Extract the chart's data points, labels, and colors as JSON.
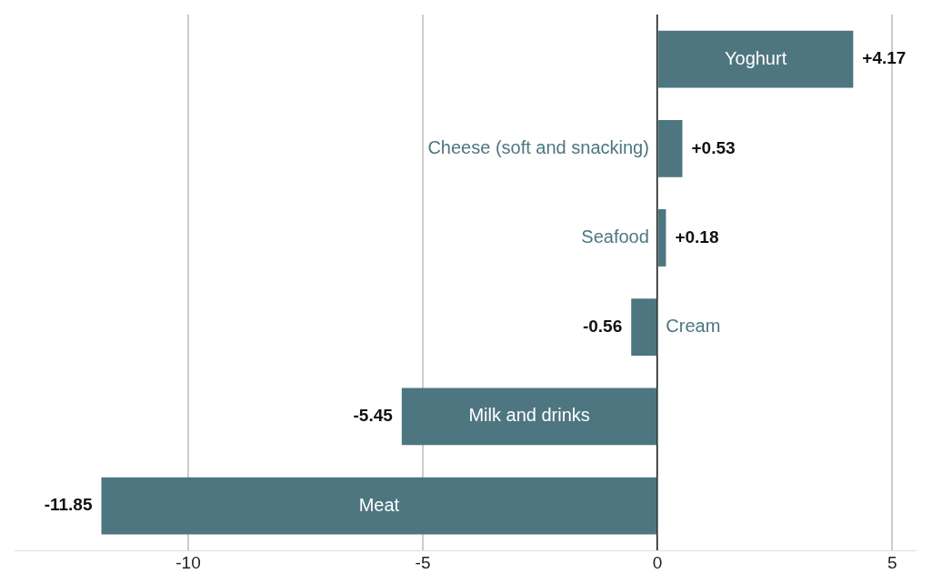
{
  "chart_data": {
    "type": "bar",
    "orientation": "horizontal",
    "categories": [
      "Yoghurt",
      "Cheese (soft and snacking)",
      "Seafood",
      "Cream",
      "Milk and drinks",
      "Meat"
    ],
    "values": [
      4.17,
      0.53,
      0.18,
      -0.56,
      -5.45,
      -11.85
    ],
    "value_labels": [
      "+4.17",
      "+0.53",
      "+0.18",
      "-0.56",
      "-5.45",
      "-11.85"
    ],
    "color": "#4d7681",
    "xlim": [
      -13.7,
      5.5
    ],
    "xticks": [
      -10,
      -5,
      0,
      5
    ],
    "grid": "x",
    "legend": false,
    "tick_labels": "x"
  }
}
